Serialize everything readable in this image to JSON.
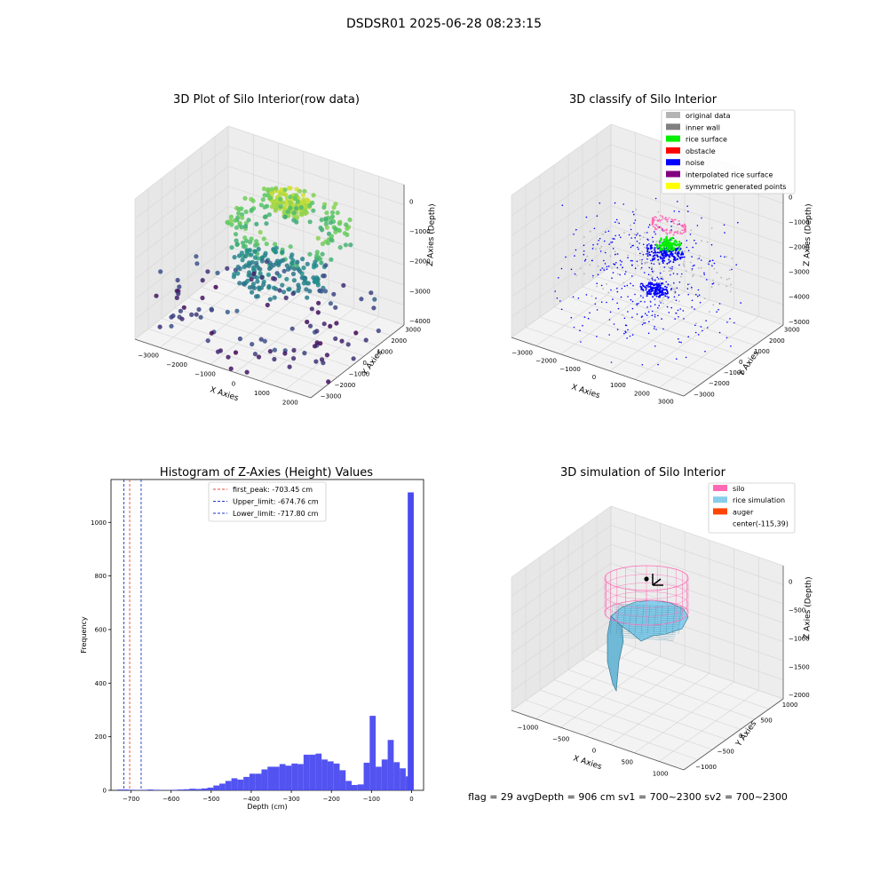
{
  "suptitle": "DSDSR01 2025-06-28 08:23:15",
  "footer": "flag = 29  avgDepth = 906 cm  sv1 = 700~2300  sv2 = 700~2300",
  "colors": {
    "hist_bar": "#4a4af0",
    "first_peak": "#e8443a",
    "limit": "#2233cc",
    "silo": "#ff69b4",
    "rice": "#87ceeb",
    "auger": "#ff4500",
    "pane": "#f2f2f2",
    "grid": "#d8d8d8"
  },
  "chart_data": [
    {
      "type": "scatter",
      "projection": "3d",
      "title": "3D Plot of Silo Interior(row data)",
      "xlabel": "X Axies",
      "ylabel": "Y Axies",
      "zlabel": "Z Axies (Depth)",
      "xticks": [
        "−3000",
        "−2000",
        "−1000",
        "0",
        "1000",
        "2000"
      ],
      "yticks": [
        "−3000",
        "−2000",
        "−1000",
        "0",
        "1000",
        "2000",
        "3000"
      ],
      "zticks": [
        "−4000",
        "−3000",
        "−2000",
        "−1000",
        "0"
      ],
      "xlim": [
        -3500,
        2800
      ],
      "ylim": [
        -3200,
        3300
      ],
      "zlim": [
        -4500,
        0
      ],
      "colormap": "viridis by depth"
    },
    {
      "type": "scatter",
      "projection": "3d",
      "title": "3D classify of Silo Interior",
      "xlabel": "X Axies",
      "ylabel": "Y Axies",
      "zlabel": "Z Axies (Depth)",
      "xticks": [
        "−3000",
        "−2000",
        "−1000",
        "0",
        "1000",
        "2000",
        "3000"
      ],
      "yticks": [
        "−3000",
        "−2000",
        "−1000",
        "0",
        "1000",
        "2000",
        "3000"
      ],
      "zticks": [
        "−5000",
        "−4000",
        "−3000",
        "−2000",
        "−1000",
        "0"
      ],
      "xlim": [
        -3500,
        3300
      ],
      "ylim": [
        -3200,
        3300
      ],
      "zlim": [
        -5500,
        0
      ],
      "legend": [
        {
          "label": "original data",
          "color": "#b4b4b4"
        },
        {
          "label": "inner wall",
          "color": "#808080"
        },
        {
          "label": "rice surface",
          "color": "#00ee00"
        },
        {
          "label": "obstacle",
          "color": "#ff0000"
        },
        {
          "label": "noise",
          "color": "#0000ff"
        },
        {
          "label": "interpolated rice surface",
          "color": "#800080"
        },
        {
          "label": "symmetric generated points",
          "color": "#ffff00"
        }
      ],
      "legend_placement": "top-right"
    },
    {
      "type": "bar",
      "title": "Histogram of Z-Axies (Height) Values",
      "xlabel": "Depth (cm)",
      "ylabel": "Frequency",
      "xlim": [
        -750,
        30
      ],
      "ylim": [
        0,
        1160
      ],
      "xticks": [
        -700,
        -600,
        -500,
        -400,
        -300,
        -200,
        -100,
        0
      ],
      "yticks": [
        0,
        200,
        400,
        600,
        800,
        1000
      ],
      "bin_width": 15,
      "x": [
        -727,
        -712,
        -697,
        -682,
        -667,
        -652,
        -637,
        -622,
        -607,
        -592,
        -577,
        -562,
        -547,
        -532,
        -517,
        -502,
        -487,
        -472,
        -457,
        -442,
        -427,
        -412,
        -397,
        -382,
        -367,
        -352,
        -337,
        -322,
        -307,
        -292,
        -277,
        -262,
        -247,
        -232,
        -217,
        -202,
        -187,
        -172,
        -157,
        -142,
        -127,
        -112,
        -97,
        -82,
        -67,
        -52,
        -37,
        -22,
        -7
      ],
      "values": [
        3,
        3,
        2,
        1,
        2,
        3,
        2,
        1,
        1,
        2,
        3,
        4,
        6,
        5,
        7,
        10,
        18,
        25,
        35,
        45,
        40,
        50,
        62,
        62,
        78,
        88,
        88,
        98,
        92,
        100,
        98,
        133,
        133,
        137,
        115,
        108,
        100,
        75,
        35,
        20,
        22,
        103,
        278,
        88,
        115,
        188,
        105,
        82,
        52
      ],
      "extra_bar": {
        "x": -2,
        "value": 1112
      },
      "vlines": [
        {
          "name": "first_peak",
          "x": -703.45,
          "label": "first_peak: -703.45 cm"
        },
        {
          "name": "upper",
          "x": -674.76,
          "label": "Upper_limit: -674.76 cm"
        },
        {
          "name": "lower",
          "x": -717.8,
          "label": "Lower_limit: -717.80 cm"
        }
      ],
      "legend_placement": "top-center"
    },
    {
      "type": "surface",
      "projection": "3d",
      "title": "3D simulation of Silo Interior",
      "xlabel": "X Axies",
      "ylabel": "Y Axies",
      "zlabel": "Z Axies (Depth)",
      "xticks": [
        "−1000",
        "−500",
        "0",
        "500",
        "1000"
      ],
      "yticks": [
        "−1000",
        "−500",
        "0",
        "500",
        "1000"
      ],
      "zticks": [
        "−2000",
        "−1500",
        "−1000",
        "−500",
        "0"
      ],
      "xlim": [
        -1300,
        1300
      ],
      "ylim": [
        -1300,
        1300
      ],
      "zlim": [
        -2300,
        200
      ],
      "legend": [
        {
          "label": "silo",
          "color": "#ff69b4"
        },
        {
          "label": "rice simulation",
          "color": "#87ceeb"
        },
        {
          "label": "auger",
          "color": "#ff4500"
        },
        {
          "label": "center(-115,39)",
          "color": ""
        }
      ],
      "legend_placement": "top-right"
    }
  ]
}
